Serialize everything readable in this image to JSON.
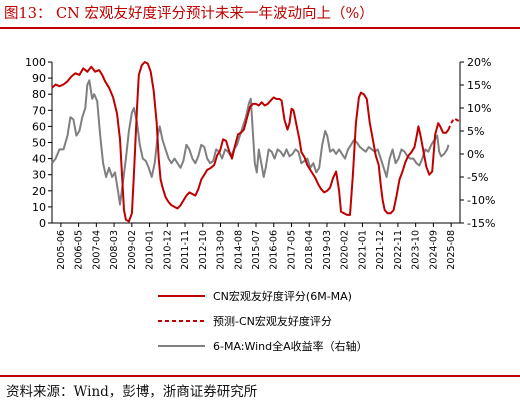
{
  "title": "图13：  CN 宏观友好度评分预计未来一年波动向上（%）",
  "source": "资料来源：Wind，彭博，浙商证券研究所",
  "colors": {
    "cn": "#c00000",
    "forecast": "#c00000",
    "ma": "#7f7f7f",
    "title": "#c00000"
  },
  "chart_data": {
    "type": "line",
    "x_tick_labels": [
      "2005-06",
      "2006-05",
      "2007-04",
      "2008-03",
      "2009-02",
      "2010-01",
      "2010-12",
      "2011-11",
      "2012-10",
      "2013-09",
      "2014-08",
      "2015-07",
      "2016-06",
      "2017-05",
      "2018-04",
      "2019-03",
      "2020-02",
      "2021-01",
      "2021-12",
      "2022-11",
      "2023-10",
      "2024-09",
      "2025-08"
    ],
    "x_range": [
      2005.42,
      2026.0
    ],
    "y_left": {
      "range": [
        0,
        100
      ],
      "ticks": [
        0,
        10,
        20,
        30,
        40,
        50,
        60,
        70,
        80,
        90,
        100
      ]
    },
    "y_right": {
      "range": [
        -15,
        20
      ],
      "ticks": [
        "-15%",
        "-10%",
        "-5%",
        "0%",
        "5%",
        "10%",
        "15%",
        "20%"
      ],
      "tick_values": [
        -15,
        -10,
        -5,
        0,
        5,
        10,
        15,
        20
      ]
    },
    "series": [
      {
        "name": "CN宏观友好度评分(6M-MA)",
        "axis": "left",
        "style": "solid",
        "points": [
          [
            2005.42,
            84
          ],
          [
            2005.6,
            86
          ],
          [
            2005.8,
            85
          ],
          [
            2006.0,
            86
          ],
          [
            2006.2,
            88
          ],
          [
            2006.4,
            91
          ],
          [
            2006.6,
            93
          ],
          [
            2006.8,
            92
          ],
          [
            2007.0,
            96
          ],
          [
            2007.2,
            94
          ],
          [
            2007.4,
            97
          ],
          [
            2007.6,
            94
          ],
          [
            2007.8,
            95
          ],
          [
            2007.95,
            92
          ],
          [
            2008.1,
            88
          ],
          [
            2008.3,
            84
          ],
          [
            2008.5,
            78
          ],
          [
            2008.7,
            68
          ],
          [
            2008.85,
            52
          ],
          [
            2008.95,
            30
          ],
          [
            2009.05,
            8
          ],
          [
            2009.15,
            2
          ],
          [
            2009.3,
            1
          ],
          [
            2009.45,
            6
          ],
          [
            2009.55,
            30
          ],
          [
            2009.7,
            70
          ],
          [
            2009.8,
            92
          ],
          [
            2009.95,
            98
          ],
          [
            2010.1,
            100
          ],
          [
            2010.25,
            99
          ],
          [
            2010.4,
            94
          ],
          [
            2010.55,
            82
          ],
          [
            2010.7,
            62
          ],
          [
            2010.8,
            40
          ],
          [
            2010.9,
            27
          ],
          [
            2011.0,
            22
          ],
          [
            2011.15,
            16
          ],
          [
            2011.3,
            13
          ],
          [
            2011.45,
            11
          ],
          [
            2011.6,
            10
          ],
          [
            2011.75,
            9
          ],
          [
            2011.9,
            11
          ],
          [
            2012.05,
            14
          ],
          [
            2012.2,
            17
          ],
          [
            2012.35,
            19
          ],
          [
            2012.5,
            18
          ],
          [
            2012.65,
            17
          ],
          [
            2012.8,
            21
          ],
          [
            2012.95,
            27
          ],
          [
            2013.1,
            30
          ],
          [
            2013.25,
            33
          ],
          [
            2013.4,
            34
          ],
          [
            2013.6,
            36
          ],
          [
            2013.75,
            42
          ],
          [
            2013.9,
            45
          ],
          [
            2014.05,
            52
          ],
          [
            2014.2,
            51
          ],
          [
            2014.35,
            45
          ],
          [
            2014.5,
            40
          ],
          [
            2014.65,
            48
          ],
          [
            2014.8,
            55
          ],
          [
            2014.95,
            56
          ],
          [
            2015.1,
            58
          ],
          [
            2015.25,
            65
          ],
          [
            2015.4,
            72
          ],
          [
            2015.55,
            74
          ],
          [
            2015.7,
            74
          ],
          [
            2015.85,
            73
          ],
          [
            2016.0,
            75
          ],
          [
            2016.15,
            73
          ],
          [
            2016.3,
            74
          ],
          [
            2016.45,
            76
          ],
          [
            2016.6,
            78
          ],
          [
            2016.75,
            77
          ],
          [
            2016.9,
            77
          ],
          [
            2017.0,
            76
          ],
          [
            2017.15,
            64
          ],
          [
            2017.3,
            58
          ],
          [
            2017.4,
            62
          ],
          [
            2017.5,
            71
          ],
          [
            2017.6,
            70
          ],
          [
            2017.7,
            64
          ],
          [
            2017.8,
            58
          ],
          [
            2017.9,
            52
          ],
          [
            2018.0,
            44
          ],
          [
            2018.15,
            41
          ],
          [
            2018.3,
            36
          ],
          [
            2018.5,
            32
          ],
          [
            2018.7,
            28
          ],
          [
            2018.85,
            24
          ],
          [
            2019.0,
            21
          ],
          [
            2019.15,
            19
          ],
          [
            2019.3,
            20
          ],
          [
            2019.45,
            22
          ],
          [
            2019.6,
            28
          ],
          [
            2019.75,
            32
          ],
          [
            2019.9,
            20
          ],
          [
            2020.0,
            7
          ],
          [
            2020.15,
            6
          ],
          [
            2020.3,
            5
          ],
          [
            2020.45,
            5
          ],
          [
            2020.6,
            30
          ],
          [
            2020.75,
            62
          ],
          [
            2020.9,
            78
          ],
          [
            2021.0,
            81
          ],
          [
            2021.15,
            80
          ],
          [
            2021.3,
            77
          ],
          [
            2021.45,
            62
          ],
          [
            2021.6,
            52
          ],
          [
            2021.75,
            42
          ],
          [
            2021.9,
            36
          ],
          [
            2022.0,
            24
          ],
          [
            2022.1,
            14
          ],
          [
            2022.2,
            8
          ],
          [
            2022.35,
            6
          ],
          [
            2022.5,
            6
          ],
          [
            2022.65,
            8
          ],
          [
            2022.8,
            17
          ],
          [
            2022.95,
            27
          ],
          [
            2023.1,
            32
          ],
          [
            2023.25,
            38
          ],
          [
            2023.4,
            42
          ],
          [
            2023.55,
            44
          ],
          [
            2023.7,
            47
          ],
          [
            2023.8,
            53
          ],
          [
            2023.9,
            60
          ],
          [
            2024.0,
            55
          ],
          [
            2024.15,
            45
          ],
          [
            2024.3,
            35
          ],
          [
            2024.45,
            30
          ],
          [
            2024.6,
            32
          ],
          [
            2024.75,
            55
          ],
          [
            2024.9,
            62
          ],
          [
            2025.0,
            60
          ],
          [
            2025.15,
            56
          ],
          [
            2025.3,
            56
          ],
          [
            2025.42,
            58
          ]
        ]
      },
      {
        "name": "预测-CN宏观友好度评分",
        "axis": "left",
        "style": "dashed",
        "points": [
          [
            2025.42,
            58
          ],
          [
            2025.55,
            62
          ],
          [
            2025.7,
            65
          ],
          [
            2025.85,
            64
          ],
          [
            2026.0,
            63
          ]
        ]
      },
      {
        "name": "6-MA:Wind全A收益率（右轴）",
        "axis": "right",
        "style": "solid",
        "points": [
          [
            2005.42,
            -2.0
          ],
          [
            2005.6,
            -1.0
          ],
          [
            2005.8,
            1.0
          ],
          [
            2006.0,
            1.0
          ],
          [
            2006.2,
            4.0
          ],
          [
            2006.35,
            8.0
          ],
          [
            2006.5,
            7.5
          ],
          [
            2006.65,
            4.0
          ],
          [
            2006.8,
            5.0
          ],
          [
            2006.95,
            8.0
          ],
          [
            2007.1,
            10.0
          ],
          [
            2007.2,
            15.0
          ],
          [
            2007.3,
            16.0
          ],
          [
            2007.45,
            12.0
          ],
          [
            2007.55,
            13.0
          ],
          [
            2007.7,
            11.5
          ],
          [
            2007.85,
            4.0
          ],
          [
            2008.0,
            -2.0
          ],
          [
            2008.15,
            -5.0
          ],
          [
            2008.3,
            -3.0
          ],
          [
            2008.45,
            -5.0
          ],
          [
            2008.6,
            -4.0
          ],
          [
            2008.75,
            -8.0
          ],
          [
            2008.85,
            -11.0
          ],
          [
            2009.0,
            -6.0
          ],
          [
            2009.15,
            -1.0
          ],
          [
            2009.3,
            5.0
          ],
          [
            2009.45,
            9.0
          ],
          [
            2009.55,
            10.0
          ],
          [
            2009.7,
            7.0
          ],
          [
            2009.85,
            2.0
          ],
          [
            2010.0,
            -1.0
          ],
          [
            2010.15,
            -1.5
          ],
          [
            2010.3,
            -3.0
          ],
          [
            2010.45,
            -5.0
          ],
          [
            2010.6,
            -2.0
          ],
          [
            2010.75,
            4.0
          ],
          [
            2010.85,
            6.0
          ],
          [
            2011.0,
            3.0
          ],
          [
            2011.15,
            1.0
          ],
          [
            2011.3,
            -1.0
          ],
          [
            2011.45,
            -2.0
          ],
          [
            2011.6,
            -1.0
          ],
          [
            2011.75,
            -2.0
          ],
          [
            2011.9,
            -3.0
          ],
          [
            2012.05,
            -1.5
          ],
          [
            2012.2,
            2.0
          ],
          [
            2012.35,
            1.0
          ],
          [
            2012.5,
            -1.0
          ],
          [
            2012.65,
            -2.0
          ],
          [
            2012.8,
            -0.5
          ],
          [
            2012.95,
            2.0
          ],
          [
            2013.1,
            1.5
          ],
          [
            2013.25,
            -1.0
          ],
          [
            2013.4,
            -2.0
          ],
          [
            2013.55,
            -1.5
          ],
          [
            2013.7,
            1.0
          ],
          [
            2013.85,
            0.5
          ],
          [
            2014.0,
            -1.0
          ],
          [
            2014.15,
            1.0
          ],
          [
            2014.3,
            0.5
          ],
          [
            2014.45,
            -0.5
          ],
          [
            2014.6,
            1.0
          ],
          [
            2014.75,
            2.0
          ],
          [
            2014.9,
            4.0
          ],
          [
            2015.05,
            6.0
          ],
          [
            2015.2,
            8.0
          ],
          [
            2015.35,
            11.0
          ],
          [
            2015.45,
            12.0
          ],
          [
            2015.55,
            5.0
          ],
          [
            2015.65,
            -2.0
          ],
          [
            2015.75,
            -4.0
          ],
          [
            2015.85,
            1.0
          ],
          [
            2016.0,
            -2.5
          ],
          [
            2016.1,
            -5.0
          ],
          [
            2016.2,
            -3.0
          ],
          [
            2016.35,
            1.0
          ],
          [
            2016.5,
            0.5
          ],
          [
            2016.65,
            -1.0
          ],
          [
            2016.8,
            1.0
          ],
          [
            2016.95,
            0.5
          ],
          [
            2017.1,
            -0.5
          ],
          [
            2017.25,
            1.0
          ],
          [
            2017.4,
            -0.5
          ],
          [
            2017.55,
            0.0
          ],
          [
            2017.7,
            1.0
          ],
          [
            2017.85,
            0.5
          ],
          [
            2018.0,
            -2.0
          ],
          [
            2018.15,
            -1.5
          ],
          [
            2018.3,
            -1.0
          ],
          [
            2018.45,
            -3.0
          ],
          [
            2018.6,
            -2.0
          ],
          [
            2018.75,
            -4.0
          ],
          [
            2018.9,
            -3.0
          ],
          [
            2019.05,
            2.0
          ],
          [
            2019.2,
            5.0
          ],
          [
            2019.3,
            4.0
          ],
          [
            2019.45,
            0.5
          ],
          [
            2019.6,
            1.0
          ],
          [
            2019.75,
            0.0
          ],
          [
            2019.9,
            1.0
          ],
          [
            2020.05,
            0.0
          ],
          [
            2020.2,
            -1.0
          ],
          [
            2020.35,
            1.0
          ],
          [
            2020.5,
            2.0
          ],
          [
            2020.65,
            3.0
          ],
          [
            2020.8,
            2.5
          ],
          [
            2020.95,
            1.5
          ],
          [
            2021.1,
            1.0
          ],
          [
            2021.25,
            0.5
          ],
          [
            2021.4,
            1.5
          ],
          [
            2021.55,
            1.0
          ],
          [
            2021.7,
            0.5
          ],
          [
            2021.85,
            1.0
          ],
          [
            2022.0,
            -1.0
          ],
          [
            2022.15,
            -3.0
          ],
          [
            2022.3,
            -5.0
          ],
          [
            2022.45,
            -1.0
          ],
          [
            2022.6,
            1.0
          ],
          [
            2022.75,
            -2.0
          ],
          [
            2022.9,
            -1.0
          ],
          [
            2023.05,
            1.0
          ],
          [
            2023.2,
            0.5
          ],
          [
            2023.35,
            -0.5
          ],
          [
            2023.5,
            -1.0
          ],
          [
            2023.65,
            -1.0
          ],
          [
            2023.8,
            -2.0
          ],
          [
            2023.95,
            -2.5
          ],
          [
            2024.1,
            -1.0
          ],
          [
            2024.25,
            1.0
          ],
          [
            2024.4,
            0.5
          ],
          [
            2024.55,
            2.0
          ],
          [
            2024.7,
            3.0
          ],
          [
            2024.85,
            4.0
          ],
          [
            2024.95,
            0.5
          ],
          [
            2025.05,
            -0.5
          ],
          [
            2025.2,
            0.0
          ],
          [
            2025.35,
            1.0
          ],
          [
            2025.42,
            2.0
          ]
        ]
      }
    ],
    "legend": {
      "placement": "bottom-center",
      "entries": [
        "CN宏观友好度评分(6M-MA)",
        "预测-CN宏观友好度评分",
        "6-MA:Wind全A收益率（右轴）"
      ]
    }
  }
}
